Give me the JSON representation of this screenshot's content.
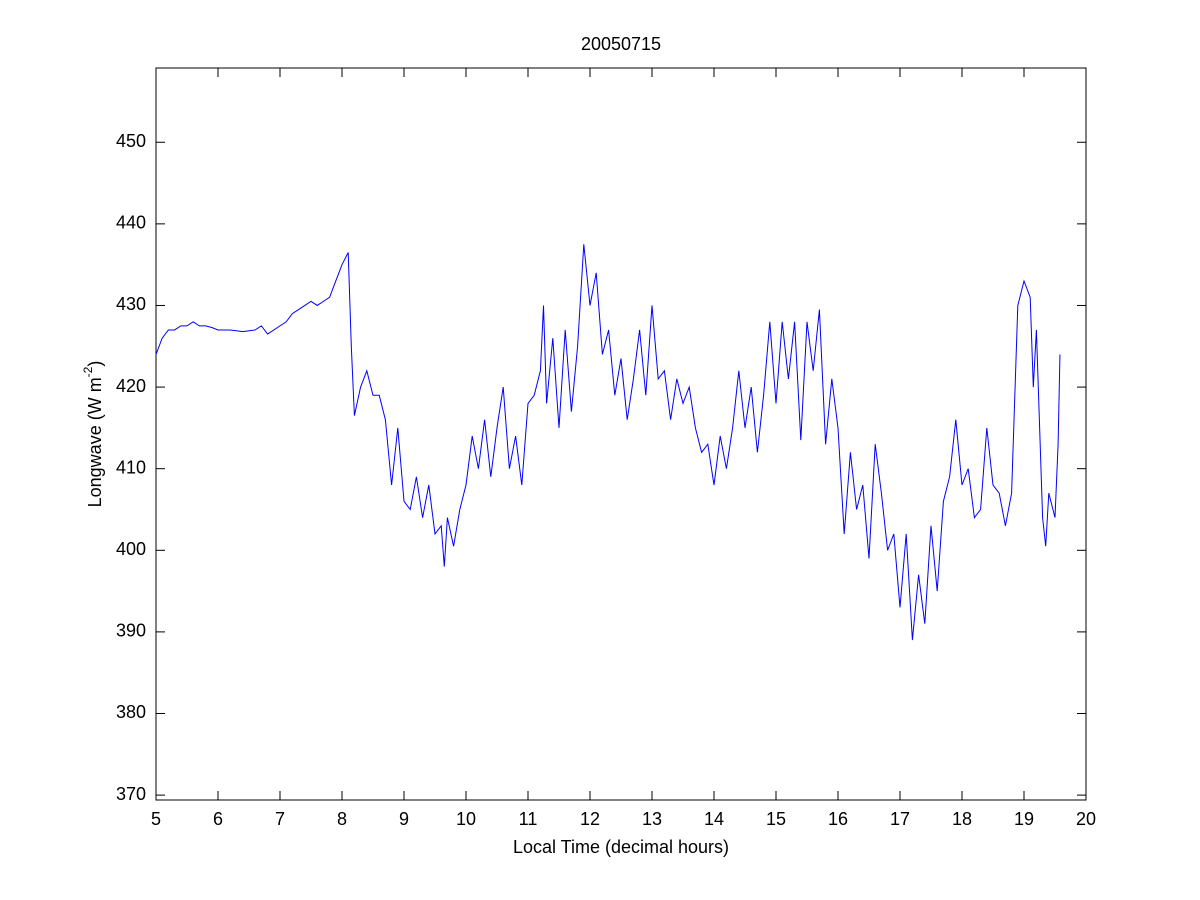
{
  "chart_data": {
    "type": "line",
    "title": "20050715",
    "xlabel": "Local Time (decimal hours)",
    "ylabel": {
      "text": "Longwave (W m",
      "sup": "-2",
      "end": ")"
    },
    "xlim": [
      5,
      20
    ],
    "xticks": [
      5,
      6,
      7,
      8,
      9,
      10,
      11,
      12,
      13,
      14,
      15,
      16,
      17,
      18,
      19,
      20
    ],
    "ylim": [
      369.4,
      459.1
    ],
    "yticks": [
      370,
      380,
      390,
      400,
      410,
      420,
      430,
      440,
      450
    ],
    "grid": false,
    "series": [
      {
        "color": "#0000ff",
        "x": [
          5.0,
          5.1,
          5.2,
          5.3,
          5.4,
          5.5,
          5.6,
          5.7,
          5.8,
          5.9,
          6.0,
          6.2,
          6.4,
          6.6,
          6.7,
          6.8,
          7.0,
          7.1,
          7.2,
          7.3,
          7.4,
          7.5,
          7.6,
          7.7,
          7.8,
          7.9,
          8.0,
          8.1,
          8.15,
          8.2,
          8.3,
          8.4,
          8.5,
          8.6,
          8.7,
          8.8,
          8.9,
          9.0,
          9.1,
          9.2,
          9.3,
          9.4,
          9.5,
          9.6,
          9.65,
          9.7,
          9.8,
          9.9,
          10.0,
          10.1,
          10.2,
          10.3,
          10.4,
          10.5,
          10.6,
          10.7,
          10.8,
          10.9,
          11.0,
          11.1,
          11.2,
          11.25,
          11.3,
          11.4,
          11.5,
          11.6,
          11.7,
          11.8,
          11.9,
          12.0,
          12.1,
          12.2,
          12.3,
          12.4,
          12.5,
          12.6,
          12.7,
          12.8,
          12.9,
          13.0,
          13.1,
          13.2,
          13.3,
          13.4,
          13.5,
          13.6,
          13.7,
          13.8,
          13.9,
          14.0,
          14.1,
          14.2,
          14.3,
          14.4,
          14.5,
          14.6,
          14.7,
          14.8,
          14.9,
          15.0,
          15.1,
          15.2,
          15.3,
          15.4,
          15.5,
          15.6,
          15.7,
          15.8,
          15.9,
          16.0,
          16.1,
          16.2,
          16.3,
          16.4,
          16.5,
          16.6,
          16.7,
          16.8,
          16.9,
          17.0,
          17.1,
          17.2,
          17.3,
          17.4,
          17.5,
          17.6,
          17.7,
          17.8,
          17.9,
          18.0,
          18.1,
          18.2,
          18.3,
          18.4,
          18.5,
          18.6,
          18.7,
          18.8,
          18.9,
          19.0,
          19.1,
          19.15,
          19.2,
          19.3,
          19.35,
          19.4,
          19.5,
          19.55,
          19.58
        ],
        "values": [
          424,
          426,
          427,
          427,
          427.5,
          427.5,
          428,
          427.5,
          427.5,
          427.3,
          427,
          427,
          426.8,
          427,
          427.5,
          426.5,
          427.5,
          428,
          429,
          429.5,
          430,
          430.5,
          430,
          430.5,
          431,
          433,
          435,
          436.5,
          425,
          416.5,
          420,
          422,
          419,
          419,
          416,
          408,
          415,
          406,
          405,
          409,
          404,
          408,
          402,
          403,
          398,
          404,
          400.5,
          405,
          408,
          414,
          410,
          416,
          409,
          415,
          420,
          410,
          414,
          408,
          418,
          419,
          422,
          430,
          418,
          426,
          415,
          427,
          417,
          425,
          437.5,
          430,
          434,
          424,
          427,
          419,
          423.5,
          416,
          421,
          427,
          419,
          430,
          421,
          422,
          416,
          421,
          418,
          420,
          415,
          412,
          413,
          408,
          414,
          410,
          415,
          422,
          415,
          420,
          412,
          419,
          428,
          418,
          428,
          421,
          428,
          413.5,
          428,
          422,
          429.5,
          413,
          421,
          415,
          402,
          412,
          405,
          408,
          399,
          413,
          407,
          400,
          402,
          393,
          402,
          389,
          397,
          391,
          403,
          395,
          406,
          409,
          416,
          408,
          410,
          404,
          405,
          415,
          408,
          407,
          403,
          407,
          430,
          433,
          431,
          420,
          427,
          404,
          400.5,
          407,
          404,
          413,
          424
        ]
      }
    ]
  }
}
